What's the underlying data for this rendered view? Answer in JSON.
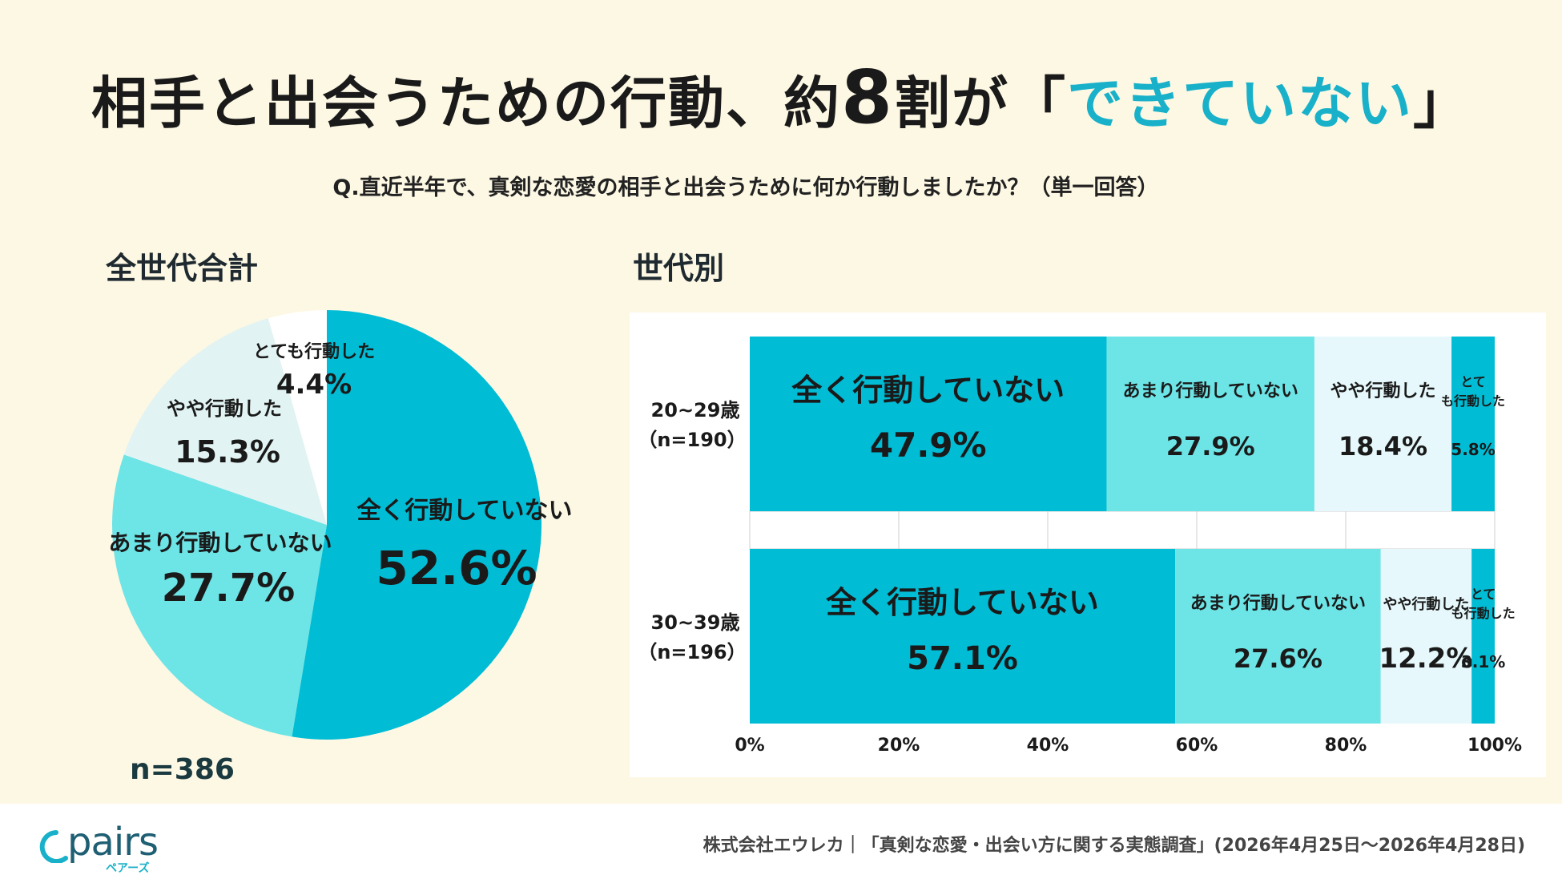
{
  "title": {
    "part1": "相手と出会うための行動、約",
    "number": "8",
    "part2": "割が「",
    "highlight": "できていない",
    "part3": "」"
  },
  "question": "Q.直近半年で、真剣な恋愛の相手と出会うために何か行動しましたか？（単一回答）",
  "left_label": "全世代合計",
  "right_label": "世代別",
  "n_total": "n=386",
  "colors": {
    "c1": "#00bcd4",
    "c2": "#6de4e6",
    "c3": "#e2f3f3",
    "c4": "#ffffff",
    "c3_bar": "#e6f8fb",
    "c4_bar": "#00bcd4"
  },
  "chart_data": [
    {
      "type": "pie",
      "slices": [
        {
          "label": "全く行動していない",
          "value": 52.6,
          "display": "52.6%"
        },
        {
          "label": "あまり行動していない",
          "value": 27.7,
          "display": "27.7%"
        },
        {
          "label": "やや行動した",
          "value": 15.3,
          "display": "15.3%"
        },
        {
          "label": "とても行動した",
          "value": 4.4,
          "display": "4.4%"
        }
      ]
    },
    {
      "type": "bar",
      "stacked": true,
      "orientation": "horizontal",
      "xlim": [
        0,
        100
      ],
      "ticks": [
        "0%",
        "20%",
        "40%",
        "60%",
        "80%",
        "100%"
      ],
      "rows": [
        {
          "label": "20~29歳",
          "n": "（n=190）",
          "segments": [
            {
              "label": "全く行動していない",
              "value": 47.9,
              "display": "47.9%"
            },
            {
              "label": "あまり行動していない",
              "value": 27.9,
              "display": "27.9%"
            },
            {
              "label": "やや行動した",
              "value": 18.4,
              "display": "18.4%"
            },
            {
              "label": "とても行動した",
              "value": 5.8,
              "display": "5.8%"
            }
          ]
        },
        {
          "label": "30~39歳",
          "n": "（n=196）",
          "segments": [
            {
              "label": "全く行動していない",
              "value": 57.1,
              "display": "57.1%"
            },
            {
              "label": "あまり行動していない",
              "value": 27.6,
              "display": "27.6%"
            },
            {
              "label": "やや行動した",
              "value": 12.2,
              "display": "12.2%"
            },
            {
              "label": "とても行動した",
              "value": 3.1,
              "display": "3.1%"
            }
          ]
        }
      ]
    }
  ],
  "footer": {
    "logo": "pairs",
    "logo_sub": "ペアーズ",
    "source": "株式会社エウレカ｜「真剣な恋愛・出会い方に関する実態調査」(2026年4月25日〜2026年4月28日)"
  }
}
